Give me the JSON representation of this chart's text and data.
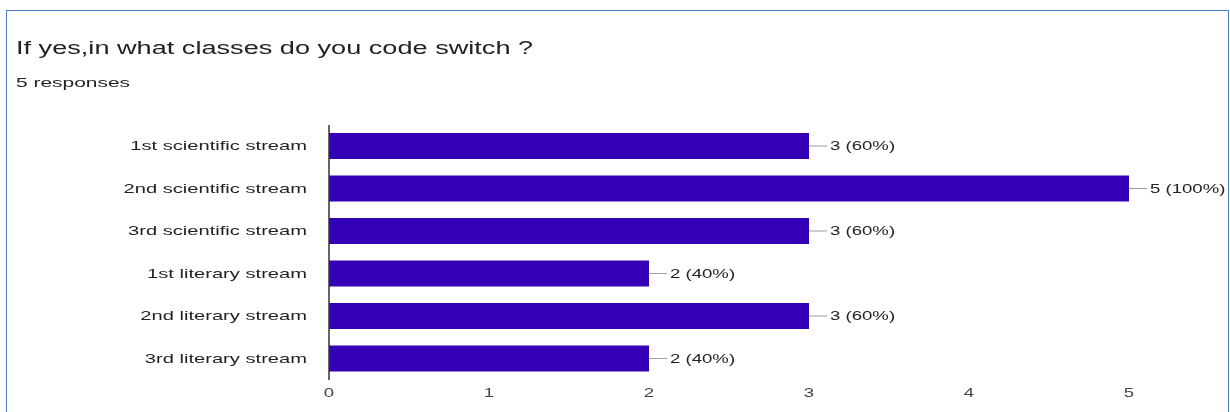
{
  "chart_data": {
    "type": "bar",
    "orientation": "horizontal",
    "title": "If yes,in what classes do you code switch ?",
    "subtitle": "5 responses",
    "categories": [
      "1st scientific stream",
      "2nd scientific stream",
      "3rd scientific stream",
      "1st literary stream",
      "2nd literary stream",
      "3rd literary stream"
    ],
    "values": [
      3,
      5,
      3,
      2,
      3,
      2
    ],
    "value_labels": [
      "3 (60%)",
      "5 (100%)",
      "3 (60%)",
      "2 (40%)",
      "3 (60%)",
      "2 (40%)"
    ],
    "color": "#3300b5",
    "xlim": [
      0,
      5
    ],
    "xticks": [
      0,
      1,
      2,
      3,
      4,
      5
    ]
  }
}
